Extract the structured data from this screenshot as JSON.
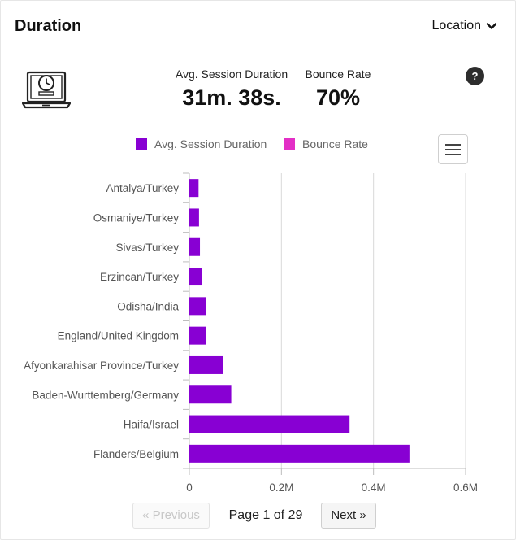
{
  "header": {
    "title": "Duration",
    "location_label": "Location"
  },
  "metrics": [
    {
      "label": "Avg. Session Duration",
      "value": "31m. 38s."
    },
    {
      "label": "Bounce Rate",
      "value": "70%"
    }
  ],
  "help_label": "?",
  "colors": {
    "session": "#8800d3",
    "bounce": "#e32fc6",
    "grid": "#d9d9d9",
    "axis": "#bdbdbd"
  },
  "icons": {
    "laptop": "laptop-clock-icon",
    "chevron": "chevron-down-icon",
    "menu": "hamburger-menu-icon",
    "help": "help-icon"
  },
  "chart_data": {
    "type": "bar",
    "orientation": "horizontal",
    "categories": [
      "Antalya/Turkey",
      "Osmaniye/Turkey",
      "Sivas/Turkey",
      "Erzincan/Turkey",
      "Odisha/India",
      "England/United Kingdom",
      "Afyonkarahisar Province/Turkey",
      "Baden-Wurttemberg/Germany",
      "Haifa/Israel",
      "Flanders/Belgium"
    ],
    "series": [
      {
        "name": "Avg. Session Duration",
        "values": [
          20000,
          21000,
          23000,
          27000,
          36000,
          36000,
          73000,
          91000,
          348000,
          478000
        ]
      },
      {
        "name": "Bounce Rate",
        "values": [
          0,
          0,
          0,
          0,
          0,
          0,
          0,
          0,
          0,
          0
        ]
      }
    ],
    "xlim": [
      0,
      600000
    ],
    "xticks": [
      0,
      200000,
      400000,
      600000
    ],
    "xtick_labels": [
      "0",
      "0.2M",
      "0.4M",
      "0.6M"
    ],
    "grid": true,
    "legend": "top"
  },
  "pager": {
    "prev_label": "« Previous",
    "info": "Page 1 of 29",
    "next_label": "Next »"
  }
}
